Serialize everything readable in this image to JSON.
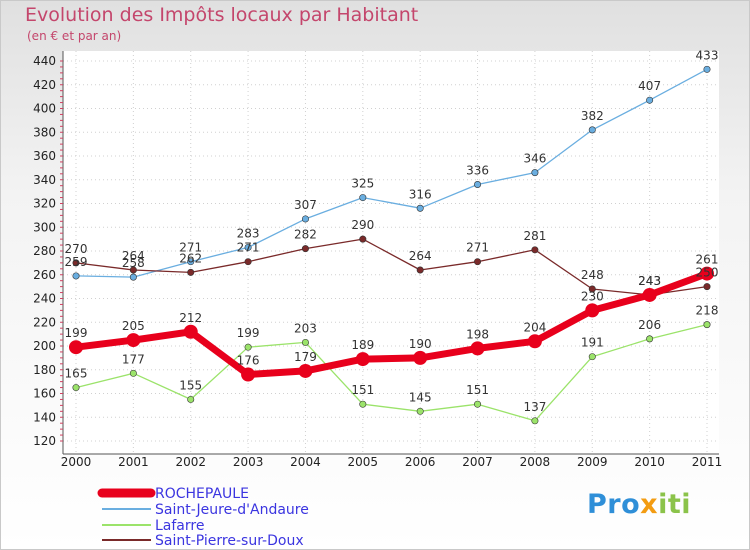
{
  "title": "Evolution des Impôts locaux par Habitant",
  "subtitle": "(en € et par an)",
  "logo": {
    "part1": "Pro",
    "part2": "x",
    "part3": "iti"
  },
  "colors": {
    "title": "#c4466c",
    "rochepaule": "#e8001c",
    "saint_jeure": "#6aaee0",
    "lafarre": "#9be36a",
    "saint_pierre": "#7a2a2a"
  },
  "chart_data": {
    "type": "line",
    "title": "Evolution des Impôts locaux par Habitant",
    "subtitle": "(en € et par an)",
    "x": [
      "2000",
      "2001",
      "2002",
      "2003",
      "2004",
      "2005",
      "2006",
      "2007",
      "2008",
      "2009",
      "2010",
      "2011"
    ],
    "ylim": [
      120,
      440
    ],
    "yticks": [
      120,
      140,
      160,
      180,
      200,
      220,
      240,
      260,
      280,
      300,
      320,
      340,
      360,
      380,
      400,
      420,
      440
    ],
    "grid": true,
    "legend_position": "bottom-left",
    "series": [
      {
        "name": "ROCHEPAULE",
        "color": "#e8001c",
        "values": [
          199,
          205,
          212,
          176,
          179,
          189,
          190,
          198,
          204,
          230,
          243,
          261
        ]
      },
      {
        "name": "Saint-Jeure-d'Andaure",
        "color": "#6aaee0",
        "values": [
          259,
          258,
          271,
          283,
          307,
          325,
          316,
          336,
          346,
          382,
          407,
          433
        ]
      },
      {
        "name": "Lafarre",
        "color": "#9be36a",
        "values": [
          165,
          177,
          155,
          199,
          203,
          151,
          145,
          151,
          137,
          191,
          206,
          218
        ]
      },
      {
        "name": "Saint-Pierre-sur-Doux",
        "color": "#7a2a2a",
        "values": [
          270,
          264,
          262,
          271,
          282,
          290,
          264,
          271,
          281,
          248,
          243,
          250
        ]
      }
    ]
  }
}
